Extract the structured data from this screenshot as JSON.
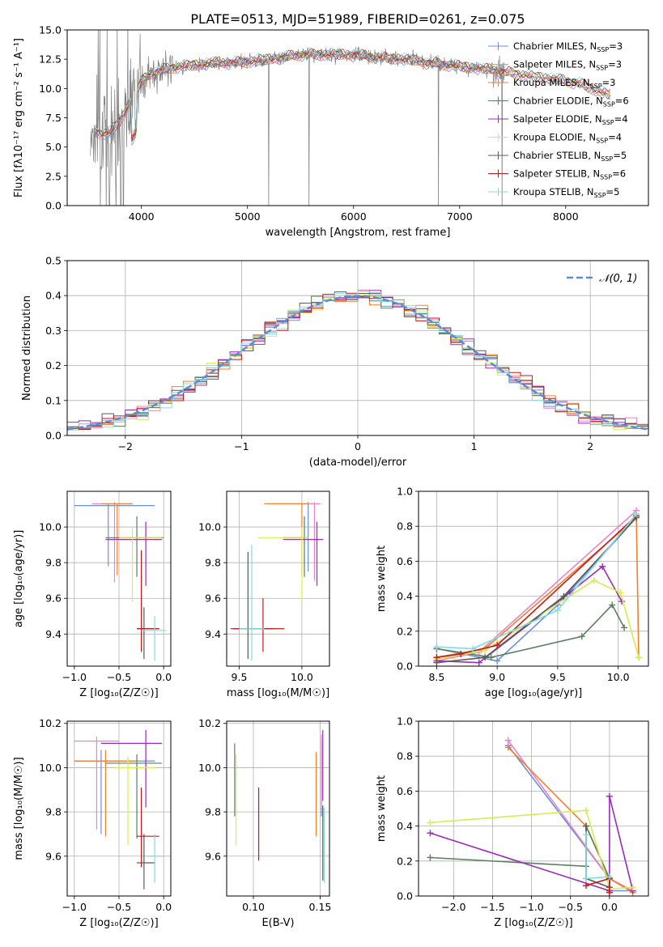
{
  "colors": {
    "palette": [
      "#6a8fdc",
      "#ee82c5",
      "#f27f2b",
      "#5a7f5e",
      "#9b2cba",
      "#d5ee4e",
      "#5b5b5b",
      "#c4161c",
      "#7fdde0"
    ],
    "spectrum": "#808080",
    "grid": "#b0b0b0"
  },
  "chart_data": [
    {
      "id": "spectrum",
      "type": "line",
      "title": "PLATE=0513, MJD=51989, FIBERID=0261, z=0.075",
      "xlabel": "wavelength [Angstrom, rest frame]",
      "ylabel": "Flux [fλ10⁻¹⁷ erg cm⁻² s⁻¹ A⁻¹]",
      "xlim": [
        3300,
        8780
      ],
      "ylim": [
        0,
        15
      ],
      "xticks": [
        4000,
        5000,
        6000,
        7000,
        8000
      ],
      "xtick_labels": [
        "4000",
        "5000",
        "6000",
        "7000",
        "8000"
      ],
      "yticks": [
        0,
        2.5,
        5,
        7.5,
        10,
        12.5,
        15
      ],
      "ytick_labels": [
        "0.0",
        "2.5",
        "5.0",
        "7.5",
        "10.0",
        "12.5",
        "15.0"
      ],
      "grid": false,
      "legend_position": "right",
      "continuum": {
        "x": [
          3550,
          3700,
          3800,
          3900,
          4000,
          4100,
          4300,
          4500,
          4700,
          4900,
          5100,
          5300,
          5500,
          5700,
          5900,
          6100,
          6300,
          6500,
          6700,
          6900,
          7100,
          7300,
          7500,
          7700,
          7900,
          8100,
          8300,
          8400
        ],
        "y": [
          6.2,
          6.2,
          7.2,
          9.0,
          10.6,
          11.3,
          11.8,
          12.0,
          12.2,
          12.2,
          12.4,
          12.6,
          12.9,
          12.9,
          12.9,
          12.8,
          12.6,
          12.5,
          12.2,
          12.0,
          11.8,
          11.6,
          11.3,
          11.0,
          10.8,
          10.5,
          9.8,
          9.5
        ]
      },
      "series": [
        {
          "name": "Chabrier MILES, N",
          "nssp": "=3"
        },
        {
          "name": "Salpeter MILES, N",
          "nssp": "=3"
        },
        {
          "name": "Kroupa MILES, N",
          "nssp": "=3"
        },
        {
          "name": "Chabrier ELODIE, N",
          "nssp": "=6"
        },
        {
          "name": "Salpeter ELODIE, N",
          "nssp": "=4"
        },
        {
          "name": "Kroupa ELODIE, N",
          "nssp": "=4"
        },
        {
          "name": "Chabrier STELIB, N",
          "nssp": "=5"
        },
        {
          "name": "Salpeter STELIB, N",
          "nssp": "=6"
        },
        {
          "name": "Kroupa STELIB, N",
          "nssp": "=5"
        }
      ],
      "legend_sub": "SSP"
    },
    {
      "id": "residuals",
      "type": "histogram",
      "xlabel": "(data-model)/error",
      "ylabel": "Normed distribution",
      "xlim": [
        -2.5,
        2.5
      ],
      "ylim": [
        0,
        0.5
      ],
      "xticks": [
        -2,
        -1,
        0,
        1,
        2
      ],
      "xtick_labels": [
        "−2",
        "−1",
        "0",
        "1",
        "2"
      ],
      "yticks": [
        0,
        0.1,
        0.2,
        0.3,
        0.4,
        0.5
      ],
      "ytick_labels": [
        "0.0",
        "0.1",
        "0.2",
        "0.3",
        "0.4",
        "0.5"
      ],
      "grid": true,
      "legend": [
        "𝒩(0, 1)"
      ],
      "legend_position": "top-right",
      "bin_width": 0.1,
      "normal": {
        "mean": 0,
        "sigma": 1
      }
    },
    {
      "id": "age-vs-Z",
      "type": "scatter",
      "xlabel": "Z [log₁₀(Z/Z☉)]",
      "ylabel": "age  [log₁₀(age/yr)]",
      "xlim": [
        -1.08,
        0.08
      ],
      "ylim": [
        9.22,
        10.2
      ],
      "xticks": [
        -1.0,
        -0.5,
        0.0
      ],
      "xtick_labels": [
        "−1.0",
        "−0.5",
        "0.0"
      ],
      "yticks": [
        9.4,
        9.6,
        9.8,
        10.0
      ],
      "ytick_labels": [
        "9.4",
        "9.6",
        "9.8",
        "10.0"
      ],
      "grid": true,
      "points": [
        {
          "series": 0,
          "x": -0.62,
          "y": 10.12,
          "xlo": -1.0,
          "xhi": -0.1,
          "ylo": 9.78,
          "yhi": 10.13
        },
        {
          "series": 1,
          "x": -0.55,
          "y": 10.13,
          "xlo": -0.8,
          "xhi": -0.35,
          "ylo": 9.69,
          "yhi": 10.14
        },
        {
          "series": 2,
          "x": -0.52,
          "y": 10.13,
          "xlo": -0.7,
          "xhi": -0.35,
          "ylo": 9.73,
          "yhi": 10.13
        },
        {
          "series": 3,
          "x": -0.3,
          "y": 9.94,
          "xlo": -0.65,
          "xhi": 0.0,
          "ylo": 9.72,
          "yhi": 10.06
        },
        {
          "series": 4,
          "x": -0.2,
          "y": 9.93,
          "xlo": -0.65,
          "xhi": -0.02,
          "ylo": 9.67,
          "yhi": 10.03
        },
        {
          "series": 5,
          "x": -0.35,
          "y": 9.94,
          "xlo": -0.5,
          "xhi": -0.02,
          "ylo": 9.58,
          "yhi": 10.0
        },
        {
          "series": 6,
          "x": -0.22,
          "y": 9.43,
          "xlo": -0.3,
          "xhi": -0.05,
          "ylo": 9.26,
          "yhi": 9.55
        },
        {
          "series": 7,
          "x": -0.25,
          "y": 9.43,
          "xlo": -0.3,
          "xhi": -0.05,
          "ylo": 9.3,
          "yhi": 9.87
        },
        {
          "series": 8,
          "x": -0.1,
          "y": 9.42,
          "xlo": -0.25,
          "xhi": 0.03,
          "ylo": 9.25,
          "yhi": 9.5
        }
      ]
    },
    {
      "id": "age-vs-mass",
      "type": "scatter",
      "xlabel": "mass [log₁₀(M/M☉)]",
      "ylabel": "",
      "xlim": [
        9.4,
        10.22
      ],
      "ylim": [
        9.22,
        10.2
      ],
      "xticks": [
        9.5,
        10.0
      ],
      "xtick_labels": [
        "9.5",
        "10.0"
      ],
      "yticks": [
        9.4,
        9.6,
        9.8,
        10.0
      ],
      "ytick_labels": [
        "9.4",
        "9.6",
        "9.8",
        "10.0"
      ],
      "grid": true,
      "points": [
        {
          "series": 0,
          "x": 10.05,
          "y": 10.13,
          "xlo": 9.7,
          "xhi": 10.1,
          "ylo": 9.75,
          "yhi": 10.14
        },
        {
          "series": 1,
          "x": 10.1,
          "y": 10.13,
          "xlo": 9.75,
          "xhi": 10.15,
          "ylo": 9.7,
          "yhi": 10.14
        },
        {
          "series": 2,
          "x": 10.0,
          "y": 10.13,
          "xlo": 9.7,
          "xhi": 10.05,
          "ylo": 9.73,
          "yhi": 10.13
        },
        {
          "series": 3,
          "x": 10.02,
          "y": 9.94,
          "xlo": 9.85,
          "xhi": 10.05,
          "ylo": 9.72,
          "yhi": 10.06
        },
        {
          "series": 4,
          "x": 10.12,
          "y": 9.93,
          "xlo": 9.85,
          "xhi": 10.17,
          "ylo": 9.67,
          "yhi": 10.03
        },
        {
          "series": 5,
          "x": 10.0,
          "y": 9.94,
          "xlo": 9.65,
          "xhi": 10.05,
          "ylo": 9.58,
          "yhi": 10.0
        },
        {
          "series": 6,
          "x": 9.57,
          "y": 9.43,
          "xlo": 9.43,
          "xhi": 9.78,
          "ylo": 9.26,
          "yhi": 9.86
        },
        {
          "series": 7,
          "x": 9.69,
          "y": 9.43,
          "xlo": 9.45,
          "xhi": 9.86,
          "ylo": 9.3,
          "yhi": 9.6
        },
        {
          "series": 8,
          "x": 9.6,
          "y": 9.43,
          "xlo": 9.5,
          "xhi": 9.7,
          "ylo": 9.25,
          "yhi": 9.9
        }
      ]
    },
    {
      "id": "weight-vs-age",
      "type": "line",
      "xlabel": "age  [log₁₀(age/yr)]",
      "ylabel": "mass weight",
      "xlim": [
        8.35,
        10.25
      ],
      "ylim": [
        0,
        1
      ],
      "xticks": [
        8.5,
        9.0,
        9.5,
        10.0
      ],
      "xtick_labels": [
        "8.5",
        "9.0",
        "9.5",
        "10.0"
      ],
      "yticks": [
        0,
        0.2,
        0.4,
        0.6,
        0.8,
        1.0
      ],
      "ytick_labels": [
        "0.0",
        "0.2",
        "0.4",
        "0.6",
        "0.8",
        "1.0"
      ],
      "grid": true,
      "series": [
        {
          "series": 0,
          "x": [
            8.5,
            9.0,
            9.5,
            10.15
          ],
          "y": [
            0.1,
            0.03,
            0.35,
            0.85
          ]
        },
        {
          "series": 1,
          "x": [
            8.5,
            8.85,
            10.15
          ],
          "y": [
            0.03,
            0.08,
            0.89
          ]
        },
        {
          "series": 2,
          "x": [
            8.5,
            8.9,
            10.15,
            10.17
          ],
          "y": [
            0.05,
            0.1,
            0.85,
            0.05
          ]
        },
        {
          "series": 3,
          "x": [
            8.5,
            8.95,
            9.7,
            9.95,
            10.05
          ],
          "y": [
            0.1,
            0.05,
            0.17,
            0.35,
            0.22
          ]
        },
        {
          "series": 4,
          "x": [
            8.5,
            8.85,
            9.6,
            9.87,
            10.03
          ],
          "y": [
            0.03,
            0.02,
            0.42,
            0.57,
            0.37
          ]
        },
        {
          "series": 5,
          "x": [
            8.5,
            8.9,
            9.8,
            10.02,
            10.17
          ],
          "y": [
            0.04,
            0.09,
            0.49,
            0.42,
            0.05
          ]
        },
        {
          "series": 6,
          "x": [
            8.5,
            8.9,
            9.55,
            10.15
          ],
          "y": [
            0.02,
            0.05,
            0.4,
            0.85
          ]
        },
        {
          "series": 7,
          "x": [
            8.5,
            8.7,
            9.0,
            10.15
          ],
          "y": [
            0.05,
            0.07,
            0.12,
            0.86
          ]
        },
        {
          "series": 8,
          "x": [
            8.5,
            8.8,
            9.5,
            10.15
          ],
          "y": [
            0.11,
            0.1,
            0.32,
            0.87
          ]
        }
      ]
    },
    {
      "id": "mass-vs-Z",
      "type": "scatter",
      "xlabel": "Z [log₁₀(Z/Z☉)]",
      "ylabel": "mass [log₁₀(M/M☉)]",
      "xlim": [
        -1.08,
        0.08
      ],
      "ylim": [
        9.42,
        10.21
      ],
      "xticks": [
        -1.0,
        -0.5,
        0.0
      ],
      "xtick_labels": [
        "−1.0",
        "−0.5",
        "0.0"
      ],
      "yticks": [
        9.6,
        9.8,
        10.0,
        10.2
      ],
      "ytick_labels": [
        "9.6",
        "9.8",
        "10.0",
        "10.2"
      ],
      "grid": true,
      "points": [
        {
          "series": 0,
          "x": -0.7,
          "y": 10.03,
          "xlo": -1.0,
          "xhi": -0.1,
          "ylo": 9.7,
          "yhi": 10.08
        },
        {
          "series": 1,
          "x": -0.75,
          "y": 10.12,
          "xlo": -1.0,
          "xhi": -0.5,
          "ylo": 9.72,
          "yhi": 10.14
        },
        {
          "series": 2,
          "x": -0.65,
          "y": 10.03,
          "xlo": -1.0,
          "xhi": -0.3,
          "ylo": 9.69,
          "yhi": 10.08
        },
        {
          "series": 3,
          "x": -0.3,
          "y": 10.02,
          "xlo": -0.65,
          "xhi": -0.02,
          "ylo": 9.68,
          "yhi": 10.06
        },
        {
          "series": 4,
          "x": -0.2,
          "y": 10.11,
          "xlo": -0.7,
          "xhi": -0.02,
          "ylo": 9.82,
          "yhi": 10.17
        },
        {
          "series": 5,
          "x": -0.4,
          "y": 10.0,
          "xlo": -0.55,
          "xhi": -0.1,
          "ylo": 9.65,
          "yhi": 10.05
        },
        {
          "series": 6,
          "x": -0.22,
          "y": 9.57,
          "xlo": -0.3,
          "xhi": -0.1,
          "ylo": 9.45,
          "yhi": 9.7
        },
        {
          "series": 7,
          "x": -0.25,
          "y": 9.69,
          "xlo": -0.3,
          "xhi": -0.05,
          "ylo": 9.55,
          "yhi": 9.91
        },
        {
          "series": 8,
          "x": -0.1,
          "y": 9.6,
          "xlo": -0.2,
          "xhi": 0.02,
          "ylo": 9.48,
          "yhi": 9.7
        }
      ]
    },
    {
      "id": "mass-vs-ebv",
      "type": "scatter",
      "xlabel": "E(B-V)",
      "ylabel": "",
      "xlim": [
        0.08,
        0.157
      ],
      "ylim": [
        9.42,
        10.21
      ],
      "xticks": [
        0.1,
        0.15
      ],
      "xtick_labels": [
        "0.10",
        "0.15"
      ],
      "yticks": [
        9.6,
        9.8,
        10.0,
        10.2
      ],
      "ytick_labels": [
        "9.6",
        "9.8",
        "10.0",
        "10.2"
      ],
      "grid": true,
      "points": [
        {
          "series": 0,
          "x": 0.151,
          "y": 10.03,
          "ylo": 9.78,
          "yhi": 10.12
        },
        {
          "series": 1,
          "x": 0.151,
          "y": 10.12,
          "ylo": 9.82,
          "yhi": 10.15
        },
        {
          "series": 2,
          "x": 0.147,
          "y": 10.03,
          "ylo": 9.69,
          "yhi": 10.07
        },
        {
          "series": 3,
          "x": 0.086,
          "y": 10.02,
          "ylo": 9.78,
          "yhi": 10.11
        },
        {
          "series": 4,
          "x": 0.152,
          "y": 10.11,
          "ylo": 9.85,
          "yhi": 10.17
        },
        {
          "series": 5,
          "x": 0.087,
          "y": 10.0,
          "ylo": 9.65,
          "yhi": 10.06
        },
        {
          "series": 6,
          "x": 0.152,
          "y": 9.57,
          "ylo": 9.49,
          "yhi": 9.83
        },
        {
          "series": 7,
          "x": 0.104,
          "y": 9.69,
          "ylo": 9.58,
          "yhi": 9.91
        },
        {
          "series": 8,
          "x": 0.153,
          "y": 9.6,
          "ylo": 9.48,
          "yhi": 9.82
        }
      ]
    },
    {
      "id": "weight-vs-Z",
      "type": "line",
      "xlabel": "Z [log₁₀(Z/Z☉)]",
      "ylabel": "mass weight",
      "xlim": [
        -2.45,
        0.5
      ],
      "ylim": [
        0,
        1
      ],
      "xticks": [
        -2.0,
        -1.5,
        -1.0,
        -0.5,
        0.0
      ],
      "xtick_labels": [
        "−2.0",
        "−1.5",
        "−1.0",
        "−0.5",
        "0.0"
      ],
      "yticks": [
        0,
        0.2,
        0.4,
        0.6,
        0.8,
        1.0
      ],
      "ytick_labels": [
        "0.0",
        "0.2",
        "0.4",
        "0.6",
        "0.8",
        "1.0"
      ],
      "grid": true,
      "series": [
        {
          "series": 0,
          "x": [
            -1.3,
            0.0,
            0.0,
            0.3
          ],
          "y": [
            0.86,
            0.1,
            0.03,
            0.03
          ]
        },
        {
          "series": 1,
          "x": [
            -1.3,
            0.0,
            0.3
          ],
          "y": [
            0.89,
            0.1,
            0.03
          ]
        },
        {
          "series": 2,
          "x": [
            -1.3,
            -0.3,
            0.0,
            0.3
          ],
          "y": [
            0.85,
            0.4,
            0.1,
            0.02
          ]
        },
        {
          "series": 3,
          "x": [
            -2.3,
            -0.3,
            -0.3,
            0.0,
            0.0
          ],
          "y": [
            0.22,
            0.17,
            0.4,
            0.1,
            0.05
          ]
        },
        {
          "series": 4,
          "x": [
            -2.3,
            0.0,
            0.0,
            0.3
          ],
          "y": [
            0.36,
            0.03,
            0.57,
            0.03
          ]
        },
        {
          "series": 5,
          "x": [
            -2.3,
            -0.3,
            0.0,
            0.3
          ],
          "y": [
            0.42,
            0.49,
            0.04,
            0.05
          ]
        },
        {
          "series": 6,
          "x": [
            -0.3,
            -0.3,
            0.0
          ],
          "y": [
            0.4,
            0.1,
            0.05
          ]
        },
        {
          "series": 7,
          "x": [
            -0.3,
            0.0,
            0.0
          ],
          "y": [
            0.06,
            0.1,
            0.02
          ]
        },
        {
          "series": 8,
          "x": [
            -0.3,
            -0.3,
            0.0
          ],
          "y": [
            0.35,
            0.1,
            0.11
          ]
        }
      ]
    }
  ]
}
